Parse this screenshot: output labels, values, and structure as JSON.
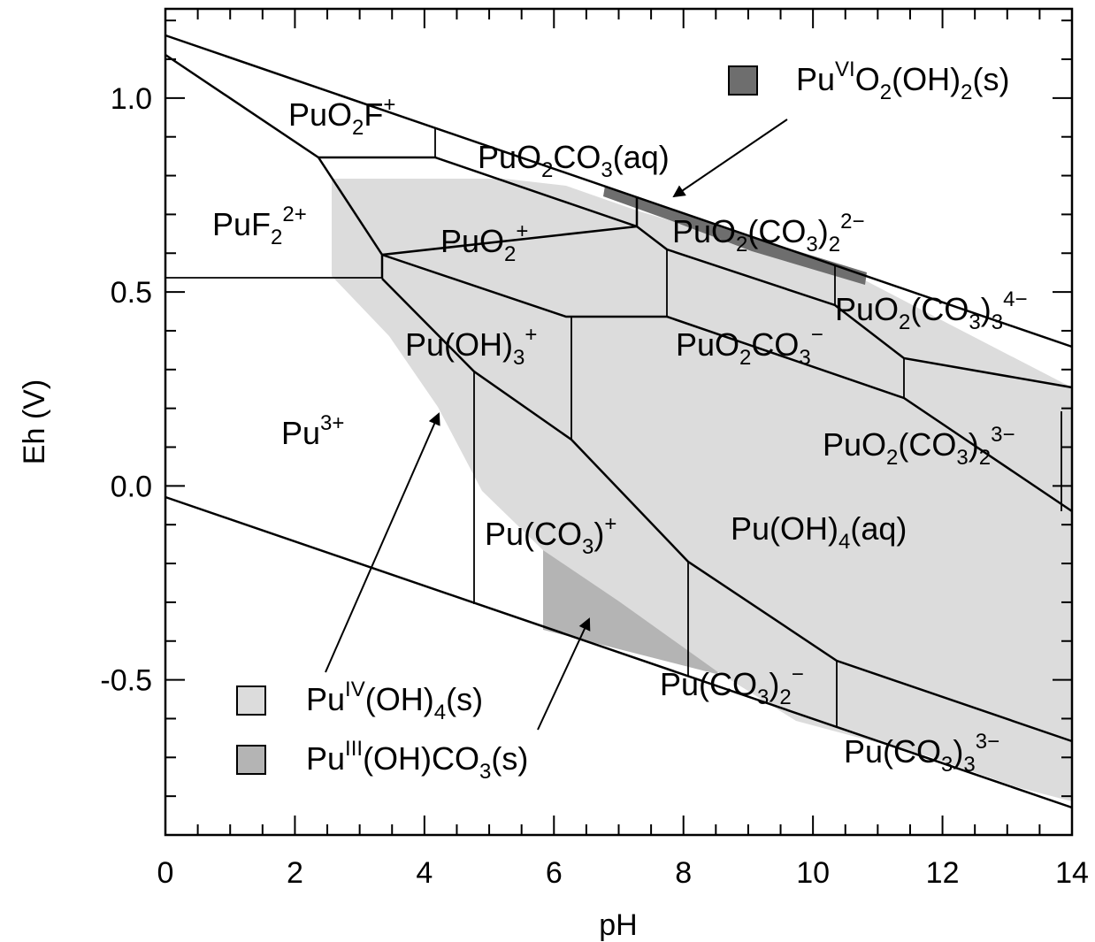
{
  "chart_data": {
    "type": "diagram",
    "xlabel": "pH",
    "ylabel": "Eh (V)",
    "xlim": [
      0,
      14
    ],
    "ylim": [
      -0.9,
      1.23
    ],
    "x_ticks": [
      "0",
      "2",
      "4",
      "6",
      "8",
      "10",
      "12",
      "14"
    ],
    "y_ticks": [
      "1.0",
      "0.5",
      "0.0",
      "-0.5"
    ],
    "species": {
      "puo2f": {
        "base": "PuO",
        "sub": "2",
        "mid": "F",
        "sup": "+"
      },
      "puf2": {
        "base": "PuF",
        "sub": "2",
        "sup": "2+"
      },
      "puo2co3aq": {
        "base": "PuO",
        "sub": "2",
        "mid": "CO",
        "sub2": "3",
        "tail": "(aq)"
      },
      "puo2": {
        "base": "PuO",
        "sub": "2",
        "sup": "+"
      },
      "puo2co3_2_2": {
        "base": "PuO",
        "sub": "2",
        "mid": "(CO",
        "sub2": "3",
        "mid2": ")",
        "sub3": "2",
        "sup": "2−"
      },
      "puo2co3_3_4": {
        "base": "PuO",
        "sub": "2",
        "mid": "(CO",
        "sub2": "3",
        "mid2": ")",
        "sub3": "3",
        "sup": "4−"
      },
      "puoh3": {
        "base": "Pu(OH)",
        "sub": "3",
        "sup": "+"
      },
      "puo2co3m": {
        "base": "PuO",
        "sub": "2",
        "mid": "CO",
        "sub2": "3",
        "sup": "−"
      },
      "pu3": {
        "base": "Pu",
        "sup": "3+"
      },
      "puo2co3_2_3": {
        "base": "PuO",
        "sub": "2",
        "mid": "(CO",
        "sub2": "3",
        "mid2": ")",
        "sub3": "2",
        "sup": "3−"
      },
      "puco3": {
        "base": "Pu(CO",
        "sub": "3",
        "mid": ")",
        "sup": "+"
      },
      "puoh4aq": {
        "base": "Pu(OH)",
        "sub": "4",
        "tail": "(aq)"
      },
      "puco3_2": {
        "base": "Pu(CO",
        "sub": "3",
        "mid": ")",
        "sub2": "2",
        "sup": "−"
      },
      "puco3_3": {
        "base": "Pu(CO",
        "sub": "3",
        "mid": ")",
        "sub2": "3",
        "sup": "3−"
      }
    },
    "legend": {
      "puvi": {
        "base": "Pu",
        "sup": "VI",
        "mid": "O",
        "sub": "2",
        "tail": "(OH)",
        "sub2": "2",
        "end": "(s)",
        "color": "#6e6e6e"
      },
      "puiv": {
        "base": "Pu",
        "sup": "IV",
        "mid": "(OH)",
        "sub": "4",
        "tail": "(s)",
        "color": "#dcdcdc"
      },
      "puiii": {
        "base": "Pu",
        "sup": "III",
        "mid": "(OH)CO",
        "sub": "3",
        "tail": "(s)",
        "color": "#b4b4b4"
      }
    }
  }
}
